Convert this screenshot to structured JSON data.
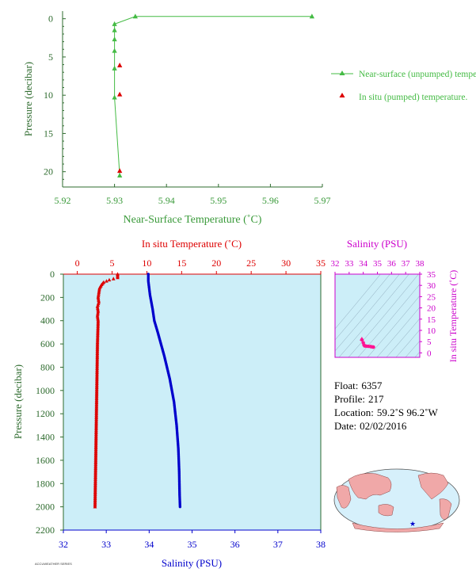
{
  "chart_data": [
    {
      "type": "line",
      "xlabel": "Near-Surface Temperature (˚C)",
      "ylabel": "Pressure (decibar)",
      "xlim": [
        5.92,
        5.97
      ],
      "ylim": [
        22,
        -1
      ],
      "x_ticks": [
        "5.92",
        "5.93",
        "5.94",
        "5.95",
        "5.96",
        "5.97"
      ],
      "y_ticks": [
        "0",
        "5",
        "10",
        "15",
        "20"
      ],
      "legend_position": "right",
      "series": [
        {
          "name": "Near-surface (unpumped) temperature.",
          "color": "#44bb44",
          "marker": "triangle",
          "points": [
            [
              5.968,
              -0.3
            ],
            [
              5.934,
              -0.3
            ],
            [
              5.93,
              0.7
            ],
            [
              5.93,
              1.5
            ],
            [
              5.93,
              2.7
            ],
            [
              5.93,
              4.2
            ],
            [
              5.93,
              6.5
            ],
            [
              5.93,
              10.3
            ],
            [
              5.931,
              20.5
            ]
          ]
        },
        {
          "name": "In situ (pumped) temperature.",
          "color": "#dd0000",
          "marker": "triangle",
          "points": [
            [
              5.931,
              6.1
            ],
            [
              5.931,
              9.9
            ],
            [
              5.931,
              19.9
            ]
          ]
        }
      ]
    },
    {
      "type": "scatter",
      "top_xlabel": "In situ Temperature (˚C)",
      "bottom_xlabel": "Salinity (PSU)",
      "ylabel": "Pressure (decibar)",
      "top_xlim": [
        -2,
        35
      ],
      "top_ticks": [
        "0",
        "5",
        "10",
        "15",
        "20",
        "25",
        "30",
        "35"
      ],
      "bottom_xlim": [
        32,
        38
      ],
      "bottom_ticks": [
        "32",
        "33",
        "34",
        "35",
        "36",
        "37",
        "38"
      ],
      "ylim": [
        2200,
        0
      ],
      "y_ticks": [
        "0",
        "200",
        "400",
        "600",
        "800",
        "1000",
        "1200",
        "1400",
        "1600",
        "1800",
        "2000",
        "2200"
      ],
      "series": [
        {
          "name": "Temperature",
          "color": "#dd0000",
          "marker": "triangle",
          "profile": [
            [
              5.8,
              0
            ],
            [
              5.8,
              30
            ],
            [
              4.6,
              50
            ],
            [
              3.8,
              70
            ],
            [
              3.5,
              90
            ],
            [
              3.2,
              120
            ],
            [
              3.1,
              160
            ],
            [
              3.0,
              200
            ],
            [
              3.1,
              240
            ],
            [
              2.9,
              280
            ],
            [
              3.0,
              320
            ],
            [
              2.9,
              360
            ],
            [
              3.0,
              400
            ],
            [
              2.95,
              500
            ],
            [
              2.9,
              600
            ],
            [
              2.85,
              800
            ],
            [
              2.8,
              1000
            ],
            [
              2.75,
              1200
            ],
            [
              2.7,
              1400
            ],
            [
              2.65,
              1600
            ],
            [
              2.6,
              1800
            ],
            [
              2.55,
              2000
            ]
          ]
        },
        {
          "name": "Salinity",
          "color": "#0000cc",
          "marker": "dot",
          "profile": [
            [
              33.98,
              0
            ],
            [
              33.98,
              60
            ],
            [
              34.0,
              120
            ],
            [
              34.02,
              180
            ],
            [
              34.05,
              240
            ],
            [
              34.08,
              300
            ],
            [
              34.1,
              350
            ],
            [
              34.12,
              400
            ],
            [
              34.2,
              500
            ],
            [
              34.35,
              700
            ],
            [
              34.48,
              900
            ],
            [
              34.58,
              1100
            ],
            [
              34.64,
              1300
            ],
            [
              34.68,
              1500
            ],
            [
              34.7,
              1700
            ],
            [
              34.71,
              1900
            ],
            [
              34.72,
              2000
            ]
          ]
        }
      ]
    },
    {
      "type": "scatter",
      "title": "Salinity (PSU)",
      "xlabel": "Salinity (PSU)",
      "ylabel": "In situ Temperature (˚C)",
      "xlim": [
        32,
        38
      ],
      "ylim": [
        -2,
        35
      ],
      "x_ticks": [
        "32",
        "33",
        "34",
        "35",
        "36",
        "37",
        "38"
      ],
      "y_ticks": [
        "0",
        "5",
        "10",
        "15",
        "20",
        "25",
        "30",
        "35"
      ],
      "color": "#ff1493",
      "points": [
        [
          33.9,
          5.8
        ],
        [
          34.0,
          4.5
        ],
        [
          34.05,
          3.5
        ],
        [
          34.1,
          3.1
        ],
        [
          34.2,
          3.0
        ],
        [
          34.35,
          2.9
        ],
        [
          34.5,
          2.8
        ],
        [
          34.6,
          2.7
        ],
        [
          34.7,
          2.6
        ],
        [
          34.72,
          2.55
        ]
      ]
    }
  ],
  "float_info": {
    "float_label": "Float:",
    "float_value": "6357",
    "profile_label": "Profile:",
    "profile_value": "217",
    "location_label": "Location:",
    "location_value": "59.2˚S  96.2˚W",
    "date_label": "Date:",
    "date_value": "02/02/2016"
  },
  "footer_text": "ACCUWEATHER SERIES",
  "colors": {
    "green": "#44bb44",
    "red": "#dd0000",
    "blue": "#0000cc",
    "magenta": "#cc00cc",
    "panel_bg": "#cceef8",
    "land": "#f0a8a8",
    "ocean": "#d6f0fb"
  }
}
